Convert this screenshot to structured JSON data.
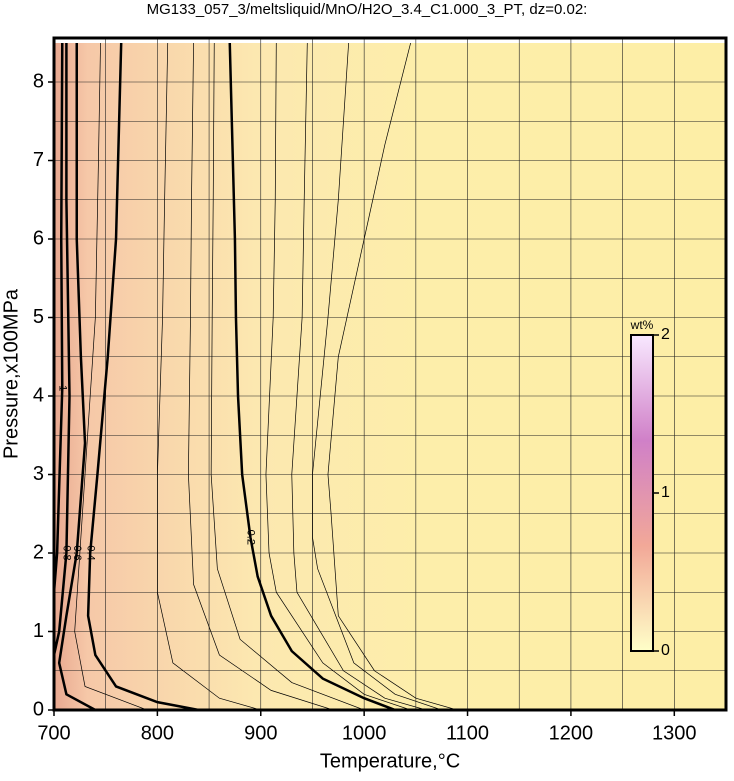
{
  "chart_data": {
    "type": "contour",
    "title": "MG133_057_3/meltsliquid/MnO/H2O_3.4_C1.000_3_PT, dz=0.02:",
    "xlabel": "Temperature,°C",
    "ylabel": "Pressure,x100MPa",
    "xlim": [
      700,
      1350
    ],
    "ylim": [
      0,
      8.5
    ],
    "xticks": [
      700,
      800,
      900,
      1000,
      1100,
      1200,
      1300
    ],
    "yticks": [
      0,
      1,
      2,
      3,
      4,
      5,
      6,
      7,
      8
    ],
    "xgrid": [
      750,
      800,
      850,
      900,
      950,
      1000,
      1050,
      1100,
      1150,
      1200,
      1250,
      1300
    ],
    "ygrid": [
      0.5,
      1,
      1.5,
      2,
      2.5,
      3,
      3.5,
      4,
      4.5,
      5,
      5.5,
      6,
      6.5,
      7,
      7.5,
      8
    ],
    "grid": true,
    "contours": [
      {
        "level": 0.12,
        "style": "thin",
        "x": [
          1045,
          1020,
          1000,
          975,
          965,
          968,
          975,
          1010,
          1050,
          1090
        ],
        "y": [
          8.5,
          7.2,
          6,
          4.5,
          3,
          2.5,
          1.2,
          0.5,
          0.15,
          0
        ]
      },
      {
        "level": 0.14,
        "style": "thin",
        "x": [
          985,
          975,
          965,
          950,
          950,
          955,
          990,
          1030,
          1075
        ],
        "y": [
          8.5,
          6.5,
          5,
          3,
          2.2,
          1.8,
          0.6,
          0.2,
          0
        ]
      },
      {
        "level": 0.16,
        "style": "thin",
        "x": [
          945,
          942,
          940,
          930,
          932,
          935,
          980,
          1020,
          1060
        ],
        "y": [
          8.5,
          6.5,
          5,
          3,
          2,
          1.5,
          0.5,
          0.15,
          0
        ]
      },
      {
        "level": 0.18,
        "style": "thin",
        "x": [
          915,
          914,
          912,
          905,
          908,
          915,
          960,
          1000,
          1045
        ],
        "y": [
          8.5,
          6.5,
          5,
          3,
          2,
          1.5,
          0.6,
          0.2,
          0
        ]
      },
      {
        "level": 0.2,
        "style": "thick",
        "x": [
          870,
          873,
          875,
          876,
          878,
          882,
          890,
          897,
          910,
          930,
          960,
          1000,
          1030
        ],
        "y": [
          8.5,
          7,
          6,
          5,
          4,
          3,
          2.2,
          1.7,
          1.2,
          0.75,
          0.4,
          0.15,
          0
        ]
      },
      {
        "level": 0.25,
        "style": "thin",
        "x": [
          855,
          854,
          853,
          852,
          858,
          880,
          930,
          1000
        ],
        "y": [
          8.5,
          6.5,
          5,
          3,
          1.8,
          0.9,
          0.35,
          0
        ]
      },
      {
        "level": 0.3,
        "style": "thin",
        "x": [
          835,
          833,
          832,
          830,
          835,
          860,
          910,
          970
        ],
        "y": [
          8.5,
          6.5,
          5,
          3,
          1.6,
          0.7,
          0.25,
          0
        ]
      },
      {
        "level": 0.35,
        "style": "thin",
        "x": [
          810,
          807,
          805,
          800,
          800,
          815,
          860,
          900
        ],
        "y": [
          8.5,
          6.5,
          5,
          3,
          1.5,
          0.6,
          0.15,
          0
        ]
      },
      {
        "level": 0.4,
        "style": "thick",
        "x": [
          765,
          763,
          760,
          752,
          742,
          735,
          733,
          740,
          760,
          800,
          840
        ],
        "y": [
          8.5,
          7.5,
          6,
          4.5,
          3,
          2,
          1.2,
          0.7,
          0.3,
          0.1,
          0
        ]
      },
      {
        "level": 0.5,
        "style": "thin",
        "x": [
          745,
          743,
          740,
          730,
          725,
          720,
          730,
          790
        ],
        "y": [
          8.5,
          7,
          5,
          3,
          2,
          1,
          0.3,
          0
        ]
      },
      {
        "level": 0.6,
        "style": "thick",
        "x": [
          722,
          722,
          726,
          730,
          722,
          712,
          705,
          712,
          740
        ],
        "y": [
          8.5,
          6,
          4.5,
          3.4,
          2,
          1.2,
          0.6,
          0.2,
          0
        ]
      },
      {
        "level": 0.8,
        "style": "thick",
        "x": [
          712,
          712,
          715,
          712,
          705,
          700
        ],
        "y": [
          8.5,
          6.5,
          4,
          2,
          1,
          0.7
        ]
      },
      {
        "level": 1,
        "style": "thick",
        "x": [
          708,
          707,
          708,
          703,
          700
        ],
        "y": [
          8.5,
          6,
          4.1,
          2,
          1.5
        ]
      }
    ],
    "colorbar": {
      "label": "wt%",
      "lim": [
        0,
        2
      ],
      "ticks": [
        0,
        1,
        2
      ],
      "colors": [
        "#ffffc8",
        "#f2a898",
        "#d080c8",
        "#f8e8ff"
      ]
    }
  }
}
